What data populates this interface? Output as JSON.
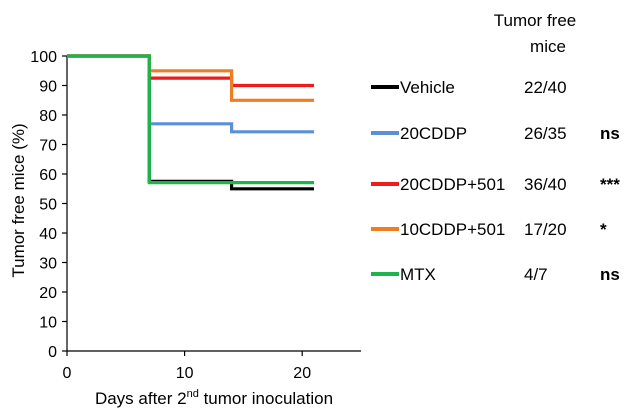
{
  "chart_data": {
    "type": "line",
    "step": true,
    "xlabel_parts": [
      "Days after 2",
      "nd",
      " tumor inoculation"
    ],
    "ylabel": "Tumor free mice (%)",
    "xlim": [
      0,
      25
    ],
    "ylim": [
      0,
      100
    ],
    "xticks": [
      0,
      10,
      20
    ],
    "yticks": [
      0,
      10,
      20,
      30,
      40,
      50,
      60,
      70,
      80,
      90,
      100
    ],
    "table_header_line1": "Tumor free",
    "table_header_line2": "mice",
    "series": [
      {
        "name": "Vehicle",
        "color": "#000000",
        "fraction": "22/40",
        "significance": "",
        "x": [
          0,
          7,
          7,
          14,
          14,
          21
        ],
        "y": [
          100,
          100,
          57.5,
          57.5,
          55,
          55
        ]
      },
      {
        "name": "20CDDP",
        "color": "#5b8fd6",
        "fraction": "26/35",
        "significance": "ns",
        "x": [
          0,
          7,
          7,
          14,
          14,
          21
        ],
        "y": [
          100,
          100,
          77,
          77,
          74.3,
          74.3
        ]
      },
      {
        "name": "20CDDP+501",
        "color": "#ee1c1c",
        "fraction": "36/40",
        "significance": "***",
        "x": [
          0,
          7,
          7,
          14,
          14,
          21
        ],
        "y": [
          100,
          100,
          92.5,
          92.5,
          90,
          90
        ]
      },
      {
        "name": "10CDDP+501",
        "color": "#ef7d22",
        "fraction": "17/20",
        "significance": "*",
        "x": [
          0,
          7,
          7,
          14,
          14,
          21
        ],
        "y": [
          100,
          100,
          95,
          95,
          85,
          85
        ]
      },
      {
        "name": "MTX",
        "color": "#1db54a",
        "fraction": "4/7",
        "significance": "ns",
        "x": [
          0,
          7,
          7,
          21
        ],
        "y": [
          100,
          100,
          57.1,
          57.1
        ]
      }
    ]
  }
}
